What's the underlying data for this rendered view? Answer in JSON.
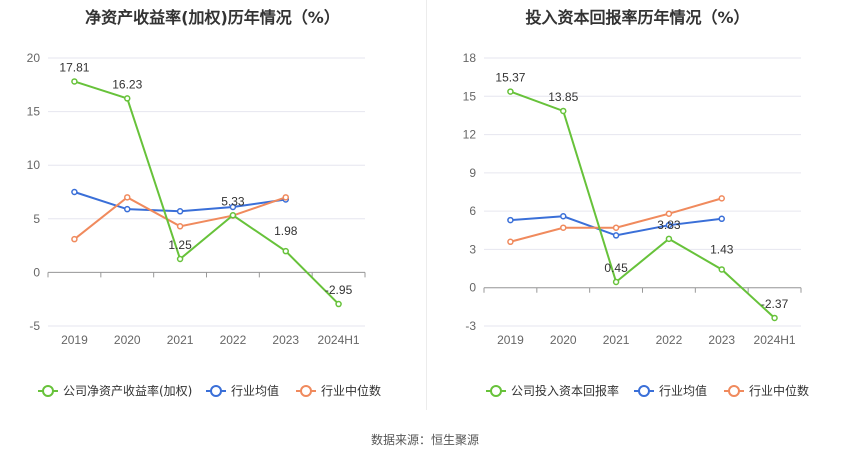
{
  "source_label": "数据来源：恒生聚源",
  "colors": {
    "company": "#67c23a",
    "average": "#3a6fd8",
    "median": "#f08a5d",
    "grid": "#e6e6ef",
    "axis": "#999999"
  },
  "chart_data": [
    {
      "type": "line",
      "title": "净资产收益率(加权)历年情况（%）",
      "categories": [
        "2019",
        "2020",
        "2021",
        "2022",
        "2023",
        "2024H1"
      ],
      "ylim": [
        -5,
        20
      ],
      "yticks": [
        -5,
        0,
        5,
        10,
        15,
        20
      ],
      "grid": true,
      "legend_position": "bottom",
      "series": [
        {
          "name": "公司净资产收益率(加权)",
          "key": "company",
          "values": [
            17.81,
            16.23,
            1.25,
            5.33,
            1.98,
            -2.95
          ],
          "labels": [
            "17.81",
            "16.23",
            "1.25",
            "5.33",
            "1.98",
            "-2.95"
          ]
        },
        {
          "name": "行业均值",
          "key": "average",
          "values": [
            7.5,
            5.9,
            5.7,
            6.1,
            6.8,
            null
          ]
        },
        {
          "name": "行业中位数",
          "key": "median",
          "values": [
            3.1,
            7.0,
            4.3,
            5.3,
            7.0,
            null
          ]
        }
      ]
    },
    {
      "type": "line",
      "title": "投入资本回报率历年情况（%）",
      "categories": [
        "2019",
        "2020",
        "2021",
        "2022",
        "2023",
        "2024H1"
      ],
      "ylim": [
        -3,
        18
      ],
      "yticks": [
        -3,
        0,
        3,
        6,
        9,
        12,
        15,
        18
      ],
      "grid": true,
      "legend_position": "bottom",
      "series": [
        {
          "name": "公司投入资本回报率",
          "key": "company",
          "values": [
            15.37,
            13.85,
            0.45,
            3.83,
            1.43,
            -2.37
          ],
          "labels": [
            "15.37",
            "13.85",
            "0.45",
            "3.83",
            "1.43",
            "-2.37"
          ]
        },
        {
          "name": "行业均值",
          "key": "average",
          "values": [
            5.3,
            5.6,
            4.1,
            4.9,
            5.4,
            null
          ]
        },
        {
          "name": "行业中位数",
          "key": "median",
          "values": [
            3.6,
            4.7,
            4.7,
            5.8,
            7.0,
            null
          ]
        }
      ]
    }
  ]
}
